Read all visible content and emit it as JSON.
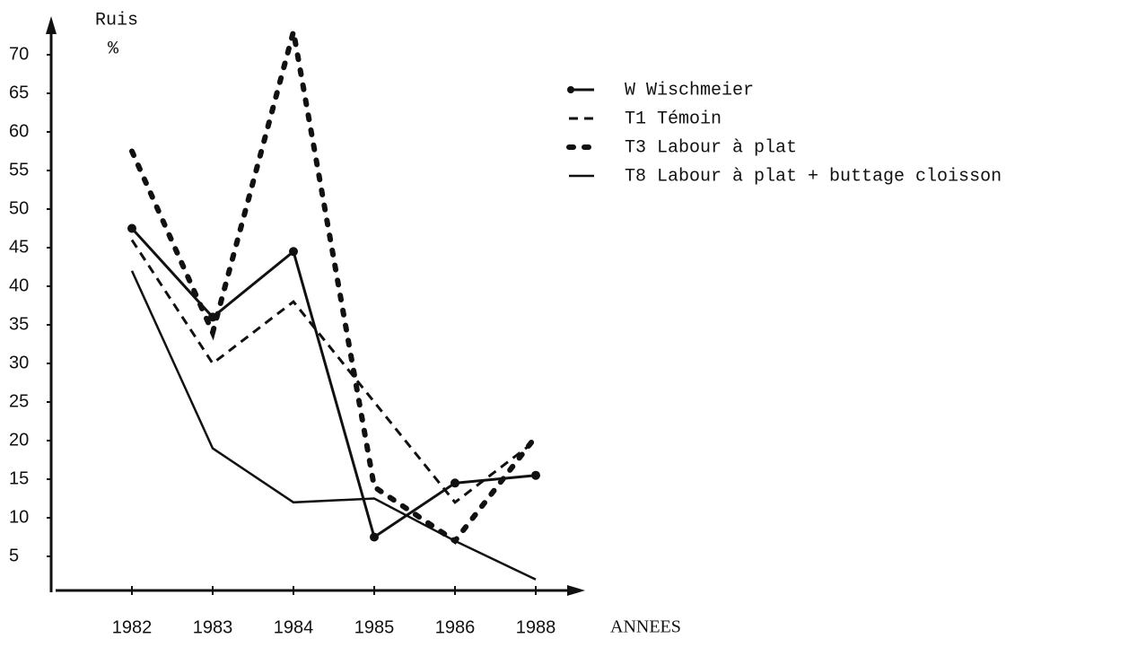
{
  "chart_data": {
    "type": "line",
    "y_label": "Ruis",
    "y_unit": "%",
    "x_label": "ANNEES",
    "categories": [
      "1982",
      "1983",
      "1984",
      "1985",
      "1986",
      "1988"
    ],
    "series": [
      {
        "name": "W Wischmeier",
        "color": "#111111",
        "style": "marker",
        "values": [
          47.5,
          36,
          44.5,
          7.5,
          14.5,
          15.5
        ]
      },
      {
        "name": "T1 Témoin",
        "color": "#111111",
        "style": "dashed",
        "values": [
          46,
          30,
          38,
          25,
          12,
          20
        ]
      },
      {
        "name": "T3 Labour à plat",
        "color": "#111111",
        "style": "dotted",
        "values": [
          57.5,
          34,
          73,
          14,
          7,
          20.5
        ]
      },
      {
        "name": "T8 Labour à plat + buttage cloisson",
        "color": "#111111",
        "style": "solid",
        "values": [
          42,
          19,
          12,
          12.5,
          7,
          2
        ]
      }
    ],
    "ylim": [
      0,
      75
    ],
    "yticks": [
      5,
      10,
      15,
      20,
      25,
      30,
      35,
      40,
      45,
      50,
      55,
      60,
      65,
      70
    ],
    "grid": false
  }
}
